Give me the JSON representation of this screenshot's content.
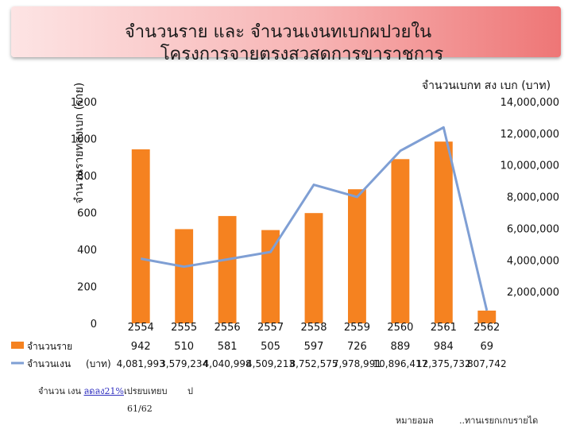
{
  "header": {
    "title_line1": "จำนวนราย  และ จำนวนเงนทเบกผปวยใน",
    "title_line2": "โครงการจายตรงสวสดการขาราชการ"
  },
  "chart_data": {
    "type": "bar",
    "categories": [
      "2554",
      "2555",
      "2556",
      "2557",
      "2558",
      "2559",
      "2560",
      "2561",
      "2562"
    ],
    "series": [
      {
        "name": "จำนวนราย",
        "kind": "bar",
        "axis": "left",
        "color": "#f58220",
        "values": [
          942,
          510,
          581,
          505,
          597,
          726,
          889,
          984,
          69
        ],
        "labels": [
          "942",
          "510",
          "581",
          "505",
          "597",
          "726",
          "889",
          "984",
          "69"
        ]
      },
      {
        "name": "จำนวนเงน",
        "kind": "line",
        "axis": "right",
        "color": "#7f9fd4",
        "values": [
          4081993,
          3579234,
          4040998,
          4509213,
          8752575,
          7978991,
          10896417,
          12375732,
          807742
        ],
        "labels": [
          "4,081,993",
          "3,579,234",
          "4,040,998",
          "4,509,213",
          "8,752,575",
          "7,978,991",
          "10,896,417",
          "12,375,732",
          "807,742"
        ]
      }
    ],
    "unit_label": "(บาท)",
    "ylabel": "จำนวนรายทสงเบก (ราย)",
    "y2label": "จำนวนเบกท สง เบก (บาท)",
    "ylim": [
      0,
      1200
    ],
    "y2lim": [
      0,
      14000000
    ],
    "yticks": [
      "0",
      "200",
      "400",
      "600",
      "800",
      "1000",
      "1200"
    ],
    "y2ticks": [
      "2,000,000",
      "4,000,000",
      "6,000,000",
      "8,000,000",
      "10,000,000",
      "12,000,000",
      "14,000,000"
    ],
    "grid": false,
    "legend": "table-below"
  },
  "footer": {
    "note_left": "จำนวน  เงน",
    "note_link": "ลดลง21%",
    "note_mid": "เปรยบเทยบ",
    "note_right": "ป",
    "page": "61/62",
    "source": "หมายอมล",
    "source_right": "..ทานเรยกเกบรายได"
  },
  "colors": {
    "bar": "#f58220",
    "line": "#7f9fd4",
    "title_grad_start": "#fde4e4",
    "title_grad_end": "#ee7676"
  }
}
